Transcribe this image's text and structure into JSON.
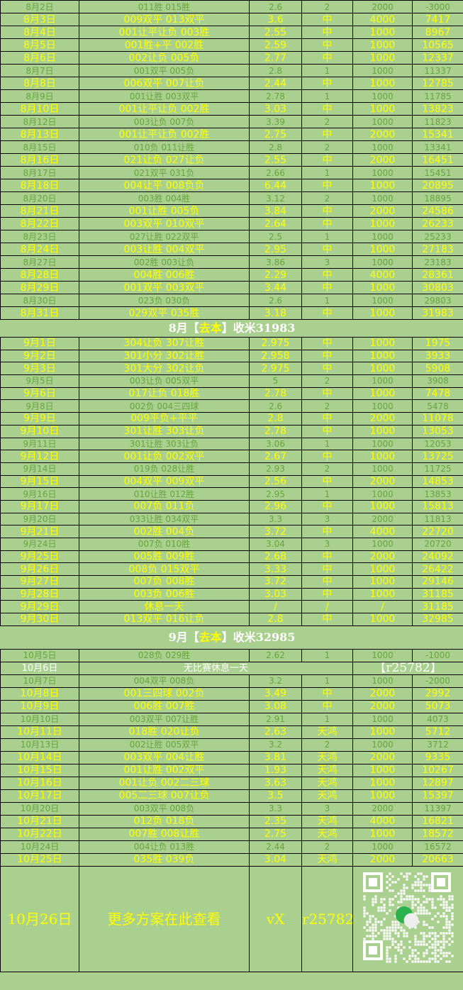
{
  "colors": {
    "background": "#a9d08e",
    "win_text": "#ffff00",
    "loss_text": "#68a43c",
    "summary_text": "#ffffff"
  },
  "august": [
    [
      "l",
      "8月2日",
      "011胜 015胜",
      "2.6",
      "2",
      "2000",
      "-3000"
    ],
    [
      "w",
      "8月3日",
      "009双平  013双平",
      "3.6",
      "中",
      "4000",
      "7417"
    ],
    [
      "w",
      "8月4日",
      "001让平让负 003胜",
      "2.55",
      "中",
      "1000",
      "8967"
    ],
    [
      "w",
      "8月5日",
      "001胜+平 002胜",
      "2.59",
      "中",
      "1000",
      "10565"
    ],
    [
      "w",
      "8月6日",
      "002让负 005负",
      "2.77",
      "中",
      "1000",
      "12337"
    ],
    [
      "l",
      "8月7日",
      "001双平 005负",
      "2.8",
      "1",
      "1000",
      "11337"
    ],
    [
      "w",
      "8月8日",
      "006双平 007让负",
      "2.44",
      "中",
      "1000",
      "12785"
    ],
    [
      "l",
      "8月9日",
      "001让胜 003双平",
      "2.78",
      "1",
      "1000",
      "11785"
    ],
    [
      "w",
      "8月10日",
      "001让平让负 002胜",
      "3.03",
      "中",
      "1000",
      "13823"
    ],
    [
      "l",
      "8月12日",
      "003让负  007负",
      "3.39",
      "2",
      "1000",
      "11823"
    ],
    [
      "w",
      "8月13日",
      "001让平让负 002胜",
      "2.75",
      "中",
      "2000",
      "15341"
    ],
    [
      "l",
      "8月15日",
      "010负 011让胜",
      "2.8",
      "2",
      "1000",
      "13341"
    ],
    [
      "w",
      "8月16日",
      "021让负 027让负",
      "2.55",
      "中",
      "2000",
      "16451"
    ],
    [
      "l",
      "8月17日",
      "021双平 031负",
      "2.66",
      "1",
      "1000",
      "15451"
    ],
    [
      "w",
      "8月18日",
      "004让平 008负负",
      "6.44",
      "中",
      "1000",
      "20895"
    ],
    [
      "l",
      "8月20日",
      "003胜 004胜",
      "3.12",
      "2",
      "1000",
      "18895"
    ],
    [
      "w",
      "8月21日",
      "001让胜 005负",
      "3.84",
      "中",
      "2000",
      "24586"
    ],
    [
      "w",
      "8月22日",
      "003双平 010双平",
      "2.64",
      "中",
      "1000",
      "26233"
    ],
    [
      "l",
      "8月23日",
      "027让胜 022双平",
      "2.5",
      "1",
      "1000",
      "25233"
    ],
    [
      "w",
      "8月24日",
      "003让胜 004双平",
      "2.95",
      "中",
      "1000",
      "27183"
    ],
    [
      "l",
      "8月27日",
      "002胜 003让负",
      "3.86",
      "3",
      "1000",
      "23183"
    ],
    [
      "w",
      "8月28日",
      "004胜 006胜",
      "2.29",
      "中",
      "4000",
      "28361"
    ],
    [
      "w",
      "8月29日",
      "001双平 003双平",
      "3.44",
      "中",
      "1000",
      "30803"
    ],
    [
      "l",
      "8月30日",
      "023负 030负",
      "2.6",
      "1",
      "1000",
      "29803"
    ],
    [
      "w",
      "8月31日",
      "029双平 035胜",
      "3.18",
      "中",
      "1000",
      "31983"
    ]
  ],
  "august_summary": {
    "prefix": "8月【",
    "highlight": "去本",
    "suffix": "】收米31983"
  },
  "september": [
    [
      "w",
      "9月1日",
      "304让负 307让胜",
      "2.975",
      "中",
      "1000",
      "1975"
    ],
    [
      "w",
      "9月2日",
      "301小分 302让胜",
      "2.958",
      "中",
      "1000",
      "3933"
    ],
    [
      "w",
      "9月3日",
      "301大分 302让负",
      "2.975",
      "中",
      "1000",
      "5908"
    ],
    [
      "l",
      "9月5日",
      "003让负 005双平",
      "5",
      "2",
      "1000",
      "3908"
    ],
    [
      "w",
      "9月6日",
      "017让负 018胜",
      "2.78",
      "中",
      "1000",
      "7478"
    ],
    [
      "l",
      "9月8日",
      "002负 004三四球",
      "2.6",
      "2",
      "1000",
      "5478"
    ],
    [
      "w",
      "9月9日",
      "009平负+平平",
      "2.8",
      "中",
      "2000",
      "11078"
    ],
    [
      "w",
      "9月10日",
      "301让胜 303让负",
      "2.78",
      "中",
      "1000",
      "13053"
    ],
    [
      "l",
      "9月11日",
      "301让胜  303让负",
      "3.06",
      "1",
      "1000",
      "12053"
    ],
    [
      "w",
      "9月12日",
      "001让负 002双平",
      "2.67",
      "中",
      "1000",
      "13725"
    ],
    [
      "l",
      "9月14日",
      "019负 028让胜",
      "2.93",
      "2",
      "1000",
      "11725"
    ],
    [
      "w",
      "9月15日",
      "004双平 009双平",
      "2.56",
      "中",
      "2000",
      "14853"
    ],
    [
      "l",
      "9月16日",
      "010让胜 012胜",
      "2.95",
      "1",
      "1000",
      "13853"
    ],
    [
      "w",
      "9月17日",
      "007负 011负",
      "2.96",
      "中",
      "1000",
      "15813"
    ],
    [
      "l",
      "9月20日",
      "033让胜 034双平",
      "3.3",
      "3",
      "2000",
      "11813"
    ],
    [
      "w",
      "9月21日",
      "002胜 004负",
      "3.72",
      "中",
      "4000",
      "22720"
    ],
    [
      "l",
      "9月24日",
      "007负 010胜",
      "3.04",
      "3",
      "1000",
      "20720"
    ],
    [
      "w",
      "9月25日",
      "005胜 009胜",
      "2.68",
      "中",
      "2000",
      "24092"
    ],
    [
      "w",
      "9月26日",
      "008负 015双平",
      "3.33",
      "中",
      "1000",
      "26422"
    ],
    [
      "w",
      "9月27日",
      "007负 008胜",
      "3.72",
      "中",
      "1000",
      "29146"
    ],
    [
      "w",
      "9月28日",
      "003负 006胜",
      "3.03",
      "中",
      "1000",
      "31185"
    ],
    [
      "w",
      "9月29日",
      "休息一天",
      "/",
      "/",
      "/",
      "31185"
    ],
    [
      "w",
      "9月30日",
      "013双平 016让负",
      "2.8",
      "中",
      "1000",
      "32985"
    ]
  ],
  "september_summary": {
    "prefix": "9月【",
    "highlight": "去本",
    "suffix": "】收米32985"
  },
  "october_first": [
    [
      "l",
      "10月5日",
      "028负 029胜",
      "2.62",
      "1",
      "1000",
      "-1000"
    ]
  ],
  "october_rest_day": {
    "date": "10月6日",
    "text": "无比赛休息一天",
    "tag": "【r25782】"
  },
  "october": [
    [
      "l",
      "10月7日",
      "004双平 008负",
      "3.2",
      "1",
      "1000",
      "-2000"
    ],
    [
      "w",
      "10月8日",
      "001三四球 002负",
      "3.49",
      "中",
      "2000",
      "2992"
    ],
    [
      "w",
      "10月9日",
      "006胜 007胜",
      "3.08",
      "中",
      "2000",
      "5073"
    ],
    [
      "l",
      "10月10日",
      "003双平 007让胜",
      "2.91",
      "1",
      "1000",
      "4073"
    ],
    [
      "w",
      "10月11日",
      "018胜 020让负",
      "2.63",
      "天鸿",
      "1000",
      "5712"
    ],
    [
      "l",
      "10月13日",
      "002让胜 005双平",
      "3.2",
      "2",
      "1000",
      "3712"
    ],
    [
      "w",
      "10月14日",
      "003双平 004让胜",
      "3.81",
      "天鸿",
      "2000",
      "9335"
    ],
    [
      "w",
      "10月15日",
      "001让胜 002双平",
      "1.93",
      "天鸿",
      "1000",
      "10267"
    ],
    [
      "w",
      "10月16日",
      "001让负 002二三球",
      "3.63",
      "天鸿",
      "1000",
      "12897"
    ],
    [
      "w",
      "10月17日",
      "005二三球 007让负",
      "3.5",
      "天鸿",
      "1000",
      "15397"
    ],
    [
      "l",
      "10月20日",
      "003双平 008负",
      "3.3",
      "3",
      "2000",
      "11397"
    ],
    [
      "w",
      "10月21日",
      "012负 018负",
      "2.35",
      "天鸿",
      "4000",
      "16821"
    ],
    [
      "w",
      "10月22日",
      "007胜 008让胜",
      "2.75",
      "天鸿",
      "1000",
      "18572"
    ],
    [
      "l",
      "10月24日",
      "004让负 013胜",
      "2.44",
      "2",
      "1000",
      "16572"
    ],
    [
      "w",
      "10月25日",
      "035胜 039负",
      "3.04",
      "天鸿",
      "2000",
      "20663"
    ]
  ],
  "footer": {
    "date": "10月26日",
    "text": "更多方案在此查看",
    "vx": "vX",
    "id": "r25782",
    "qr_icon": "wechat-qr-code"
  }
}
